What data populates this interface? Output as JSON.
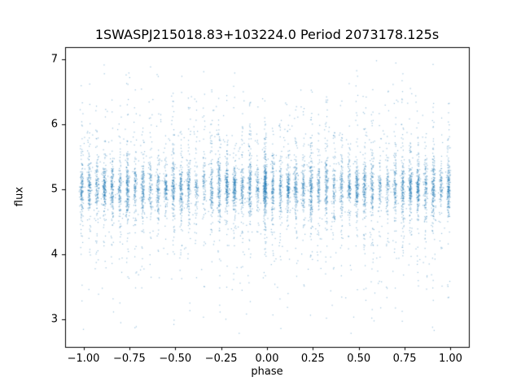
{
  "figure": {
    "background": "#ffffff",
    "axes_color": "#000000"
  },
  "chart_data": {
    "type": "scatter",
    "title": "1SWASPJ215018.83+103224.0 Period 2073178.125s",
    "xlabel": "phase",
    "ylabel": "flux",
    "xlim": [
      -1.1,
      1.1
    ],
    "ylim": [
      2.57,
      7.19
    ],
    "xticks": [
      -1.0,
      -0.75,
      -0.5,
      -0.25,
      0.0,
      0.25,
      0.5,
      0.75,
      1.0
    ],
    "xtick_labels": [
      "−1.00",
      "−0.75",
      "−0.50",
      "−0.25",
      "0.00",
      "0.25",
      "0.50",
      "0.75",
      "1.00"
    ],
    "yticks": [
      3,
      4,
      5,
      6,
      7
    ],
    "ytick_labels": [
      "3",
      "4",
      "5",
      "6",
      "7"
    ],
    "marker_color": "#1f77b4",
    "marker_alpha": 0.45,
    "marker_size": 1,
    "legend": null,
    "grid": false,
    "scatter_model": {
      "description": "Phase-folded stellar light curve; nightly observation groups form narrow vertical stripes of points, repeated across phase -1 to 1, centered on flux ~5 with sparse tails reaching ~2.8 and ~7.0",
      "seed": 42,
      "stripes_per_period": 25,
      "stripe_spacing": 0.0416666,
      "stripe_offset": -0.01,
      "x_jitter_sigma": 0.0045,
      "points_per_stripe_min": 90,
      "points_per_stripe_max": 230,
      "stripe_amp_min": 0.55,
      "stripe_amp_max": 1.3,
      "flux_center": 5.02,
      "flux_sigmas": [
        0.18,
        0.45,
        0.95
      ],
      "flux_sigma_weights": [
        0.62,
        0.24,
        0.14
      ],
      "flux_min": 2.78,
      "flux_max": 6.98,
      "background_points": 450,
      "background_sigma": 0.8
    }
  }
}
